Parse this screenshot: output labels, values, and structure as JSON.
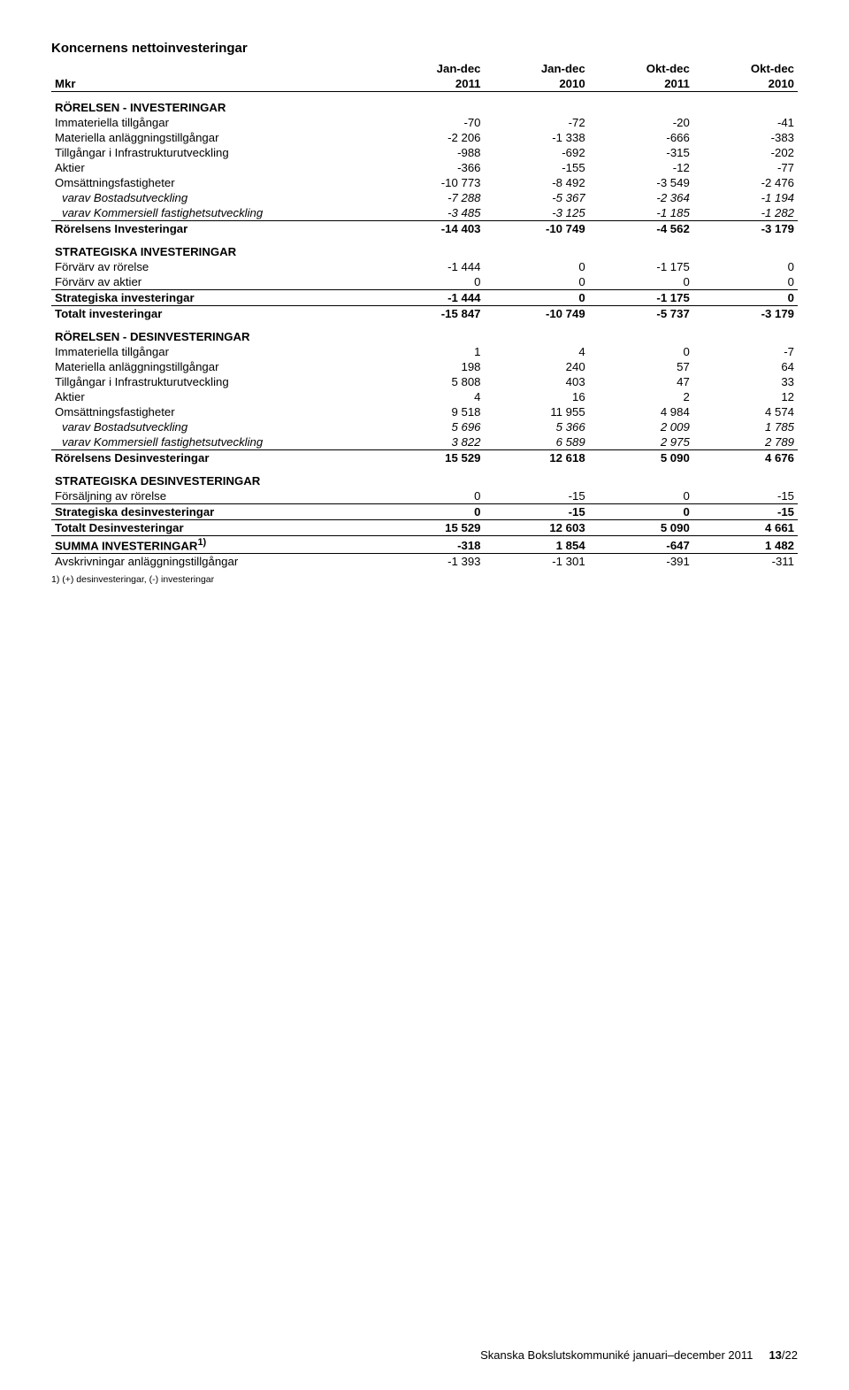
{
  "title": "Koncernens nettoinvesteringar",
  "columns": {
    "col1_top": "Jan-dec",
    "col1_bot": "2011",
    "col2_top": "Jan-dec",
    "col2_bot": "2010",
    "col3_top": "Okt-dec",
    "col3_bot": "2011",
    "col4_top": "Okt-dec",
    "col4_bot": "2010",
    "rowlabel": "Mkr"
  },
  "sections": {
    "s1": "RÖRELSEN - INVESTERINGAR",
    "s2": "STRATEGISKA INVESTERINGAR",
    "s3": "RÖRELSEN - DESINVESTERINGAR",
    "s4": "STRATEGISKA DESINVESTERINGAR"
  },
  "rows": {
    "r1": {
      "l": "Immateriella tillgångar",
      "v": [
        "-70",
        "-72",
        "-20",
        "-41"
      ]
    },
    "r2": {
      "l": "Materiella anläggningstillgångar",
      "v": [
        "-2 206",
        "-1 338",
        "-666",
        "-383"
      ]
    },
    "r3": {
      "l": "Tillgångar i Infrastrukturutveckling",
      "v": [
        "-988",
        "-692",
        "-315",
        "-202"
      ]
    },
    "r4": {
      "l": "Aktier",
      "v": [
        "-366",
        "-155",
        "-12",
        "-77"
      ]
    },
    "r5": {
      "l": "Omsättningsfastigheter",
      "v": [
        "-10 773",
        "-8 492",
        "-3 549",
        "-2 476"
      ]
    },
    "r6": {
      "l": "varav Bostadsutveckling",
      "v": [
        "-7 288",
        "-5 367",
        "-2 364",
        "-1 194"
      ]
    },
    "r7": {
      "l": "varav Kommersiell fastighetsutveckling",
      "v": [
        "-3 485",
        "-3 125",
        "-1 185",
        "-1 282"
      ]
    },
    "r8": {
      "l": "Rörelsens Investeringar",
      "v": [
        "-14 403",
        "-10 749",
        "-4 562",
        "-3 179"
      ]
    },
    "r9": {
      "l": "Förvärv av rörelse",
      "v": [
        "-1 444",
        "0",
        "-1 175",
        "0"
      ]
    },
    "r10": {
      "l": "Förvärv av aktier",
      "v": [
        "0",
        "0",
        "0",
        "0"
      ]
    },
    "r11": {
      "l": "Strategiska investeringar",
      "v": [
        "-1 444",
        "0",
        "-1 175",
        "0"
      ]
    },
    "r12": {
      "l": "Totalt investeringar",
      "v": [
        "-15 847",
        "-10 749",
        "-5 737",
        "-3 179"
      ]
    },
    "r13": {
      "l": "Immateriella tillgångar",
      "v": [
        "1",
        "4",
        "0",
        "-7"
      ]
    },
    "r14": {
      "l": "Materiella anläggningstillgångar",
      "v": [
        "198",
        "240",
        "57",
        "64"
      ]
    },
    "r15": {
      "l": "Tillgångar i Infrastrukturutveckling",
      "v": [
        "5 808",
        "403",
        "47",
        "33"
      ]
    },
    "r16": {
      "l": "Aktier",
      "v": [
        "4",
        "16",
        "2",
        "12"
      ]
    },
    "r17": {
      "l": "Omsättningsfastigheter",
      "v": [
        "9 518",
        "11 955",
        "4 984",
        "4 574"
      ]
    },
    "r18": {
      "l": "varav Bostadsutveckling",
      "v": [
        "5 696",
        "5 366",
        "2 009",
        "1 785"
      ]
    },
    "r19": {
      "l": "varav Kommersiell fastighetsutveckling",
      "v": [
        "3 822",
        "6 589",
        "2 975",
        "2 789"
      ]
    },
    "r20": {
      "l": "Rörelsens Desinvesteringar",
      "v": [
        "15 529",
        "12 618",
        "5 090",
        "4 676"
      ]
    },
    "r21": {
      "l": "Försäljning av rörelse",
      "v": [
        "0",
        "-15",
        "0",
        "-15"
      ]
    },
    "r22": {
      "l": "Strategiska desinvesteringar",
      "v": [
        "0",
        "-15",
        "0",
        "-15"
      ]
    },
    "r23": {
      "l": "Totalt Desinvesteringar",
      "v": [
        "15 529",
        "12 603",
        "5 090",
        "4 661"
      ]
    },
    "r24": {
      "l": "SUMMA INVESTERINGAR",
      "sup": "1)",
      "v": [
        "-318",
        "1 854",
        "-647",
        "1 482"
      ]
    },
    "r25": {
      "l": "Avskrivningar anläggningstillgångar",
      "v": [
        "-1 393",
        "-1 301",
        "-391",
        "-311"
      ]
    }
  },
  "footnote": "1) (+) desinvesteringar, (-) investeringar",
  "footer": {
    "text": "Skanska Bokslutskommuniké januari–december 2011",
    "page": "13",
    "total": "/22"
  },
  "colwidths": {
    "c0": "44%",
    "c1": "14%",
    "c2": "14%",
    "c3": "14%",
    "c4": "14%"
  }
}
